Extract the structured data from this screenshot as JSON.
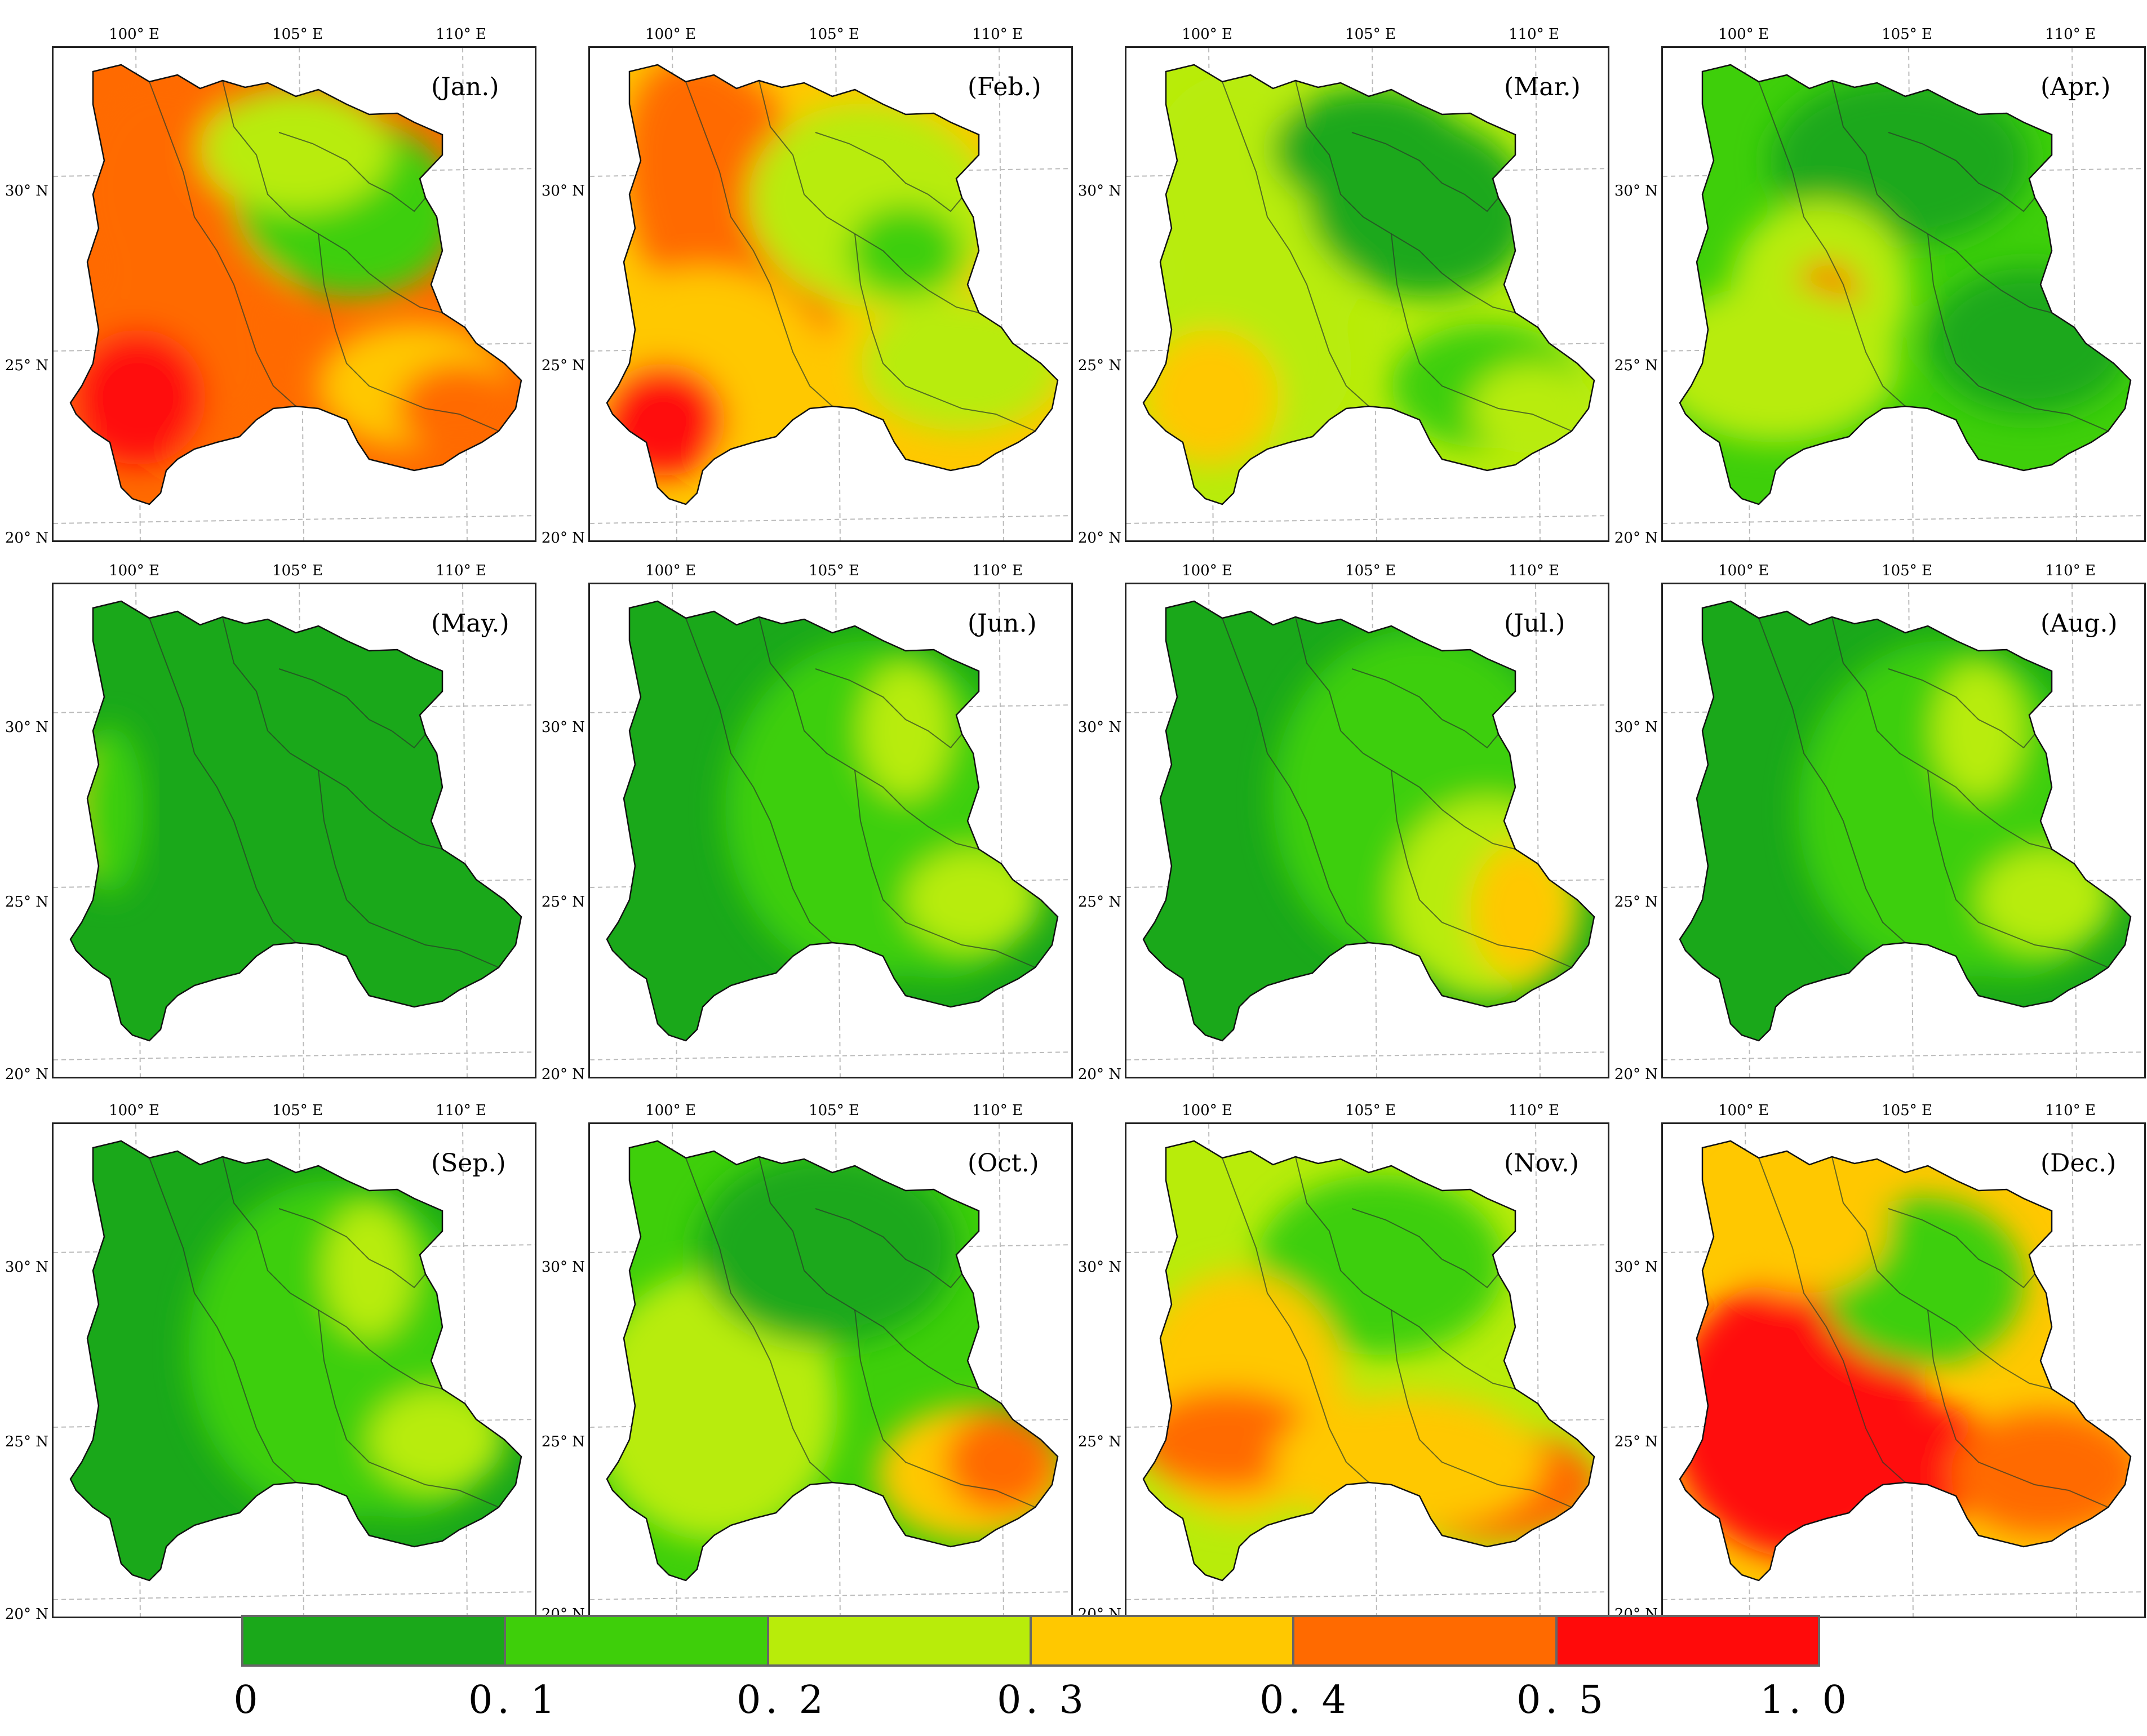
{
  "axes": {
    "lon_labels": [
      "100° E",
      "105° E",
      "110° E"
    ],
    "lat_labels": [
      "30° N",
      "25° N",
      "20° N"
    ]
  },
  "legend": {
    "classes": [
      {
        "range": "0–0.1",
        "color": "#1aa81a"
      },
      {
        "range": "0.1–0.2",
        "color": "#3ecf0a"
      },
      {
        "range": "0.2–0.3",
        "color": "#b8ec0a"
      },
      {
        "range": "0.3–0.4",
        "color": "#ffc800"
      },
      {
        "range": "0.4–0.5",
        "color": "#ff6a00"
      },
      {
        "range": "0.5–1.0",
        "color": "#ff0a0a"
      }
    ],
    "tick_labels": [
      "0",
      "0. 1",
      "0. 2",
      "0. 3",
      "0. 4",
      "0. 5",
      "1. 0"
    ]
  },
  "panels": [
    {
      "label": "(Jan.)",
      "dominant_class": 4,
      "pattern": "west-south-high"
    },
    {
      "label": "(Feb.)",
      "dominant_class": 3,
      "pattern": "west-high"
    },
    {
      "label": "(Mar.)",
      "dominant_class": 2,
      "pattern": "west-south-high"
    },
    {
      "label": "(Apr.)",
      "dominant_class": 1,
      "pattern": "center-spot"
    },
    {
      "label": "(May.)",
      "dominant_class": 0,
      "pattern": "west-edge"
    },
    {
      "label": "(Jun.)",
      "dominant_class": 0,
      "pattern": "east-mild"
    },
    {
      "label": "(Jul.)",
      "dominant_class": 0,
      "pattern": "east-moderate"
    },
    {
      "label": "(Aug.)",
      "dominant_class": 0,
      "pattern": "east-mild"
    },
    {
      "label": "(Sep.)",
      "dominant_class": 0,
      "pattern": "east-mild"
    },
    {
      "label": "(Oct.)",
      "dominant_class": 1,
      "pattern": "southeast-high"
    },
    {
      "label": "(Nov.)",
      "dominant_class": 2,
      "pattern": "south-high"
    },
    {
      "label": "(Dec.)",
      "dominant_class": 3,
      "pattern": "southwest-very-high"
    }
  ]
}
